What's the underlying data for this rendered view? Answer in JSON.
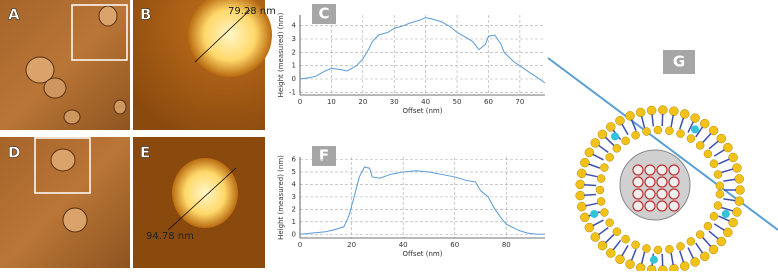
{
  "panels": [
    "A",
    "B",
    "D",
    "E",
    "G"
  ],
  "measurements": [
    "79.28 nm",
    "94.78 nm"
  ],
  "chart_data": [
    {
      "type": "line",
      "panel_label": "C",
      "x_label": "Offset (nm)",
      "y_label": "Height (measured) (nm)",
      "x": [
        0,
        3,
        5,
        8,
        10,
        13,
        15,
        18,
        20,
        22,
        23,
        25,
        28,
        30,
        33,
        35,
        38,
        40,
        42,
        45,
        48,
        50,
        53,
        55,
        57,
        59,
        60,
        62,
        64,
        65,
        68,
        70,
        73,
        75,
        78
      ],
      "series": [
        {
          "name": "profile",
          "color": "#5b9bd5",
          "values": [
            0.0,
            0.1,
            0.2,
            0.6,
            0.8,
            0.7,
            0.6,
            1.0,
            1.5,
            2.3,
            2.8,
            3.3,
            3.5,
            3.8,
            4.0,
            4.2,
            4.4,
            4.6,
            4.5,
            4.3,
            3.9,
            3.5,
            3.1,
            2.8,
            2.2,
            2.6,
            3.2,
            3.3,
            2.6,
            2.0,
            1.3,
            1.0,
            0.5,
            0.2,
            -0.3
          ]
        }
      ],
      "xlim": [
        0,
        78
      ],
      "xticks": [
        0,
        10,
        20,
        30,
        40,
        50,
        60,
        70
      ],
      "ylim": [
        -1.2,
        4.8
      ],
      "yticks": [
        -1,
        0,
        1,
        2,
        3,
        4
      ],
      "grid": true
    },
    {
      "type": "line",
      "panel_label": "F",
      "x_label": "Offset (nm)",
      "y_label": "Height (measured) (nm)",
      "x": [
        0,
        5,
        10,
        14,
        17,
        19,
        21,
        23,
        25,
        27,
        28,
        31,
        35,
        40,
        45,
        50,
        55,
        60,
        65,
        68,
        70,
        73,
        75,
        78,
        80,
        83,
        85,
        88,
        92,
        95
      ],
      "series": [
        {
          "name": "profile",
          "color": "#5b9bd5",
          "values": [
            0.0,
            0.1,
            0.2,
            0.4,
            0.6,
            1.5,
            3.0,
            4.6,
            5.4,
            5.3,
            4.6,
            4.5,
            4.8,
            5.0,
            5.1,
            5.0,
            4.8,
            4.6,
            4.3,
            4.2,
            3.5,
            3.0,
            2.2,
            1.3,
            0.8,
            0.5,
            0.3,
            0.1,
            0.0,
            0.0
          ]
        }
      ],
      "xlim": [
        0,
        95
      ],
      "xticks": [
        0,
        20,
        40,
        60,
        80
      ],
      "ylim": [
        -0.3,
        6.2
      ],
      "yticks": [
        0,
        1,
        2,
        3,
        4,
        5,
        6
      ],
      "grid": true
    }
  ]
}
